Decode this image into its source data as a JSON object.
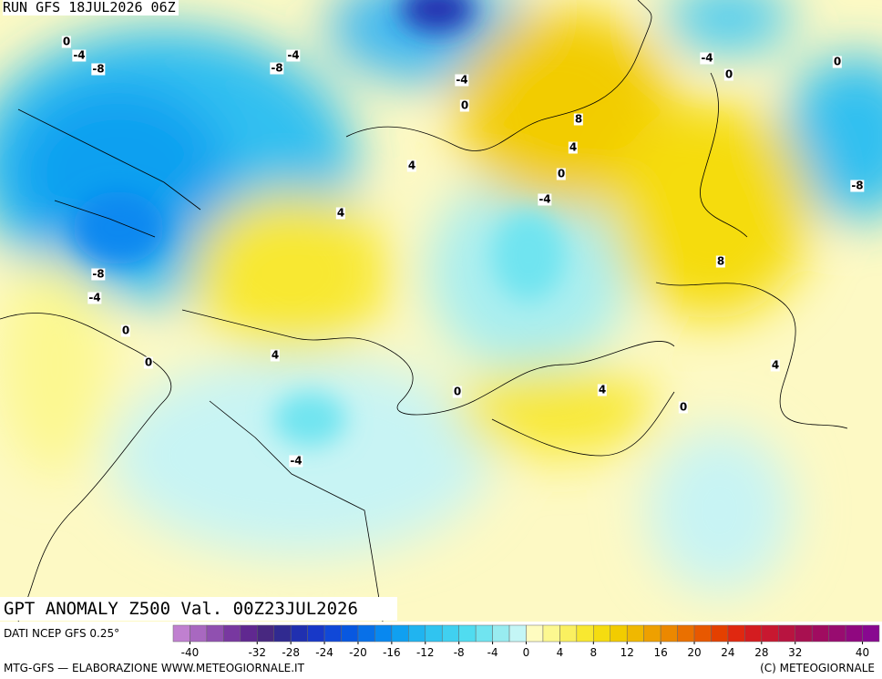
{
  "header": {
    "run": "RUN GFS 18JUL2026 06Z"
  },
  "title": "GPT ANOMALY Z500 Val. 00Z23JUL2026",
  "contour_labels": [
    0,
    -4,
    -8,
    -8,
    -4,
    -4,
    0,
    8,
    4,
    4,
    0,
    -4,
    4,
    -8,
    -4,
    0,
    4,
    0,
    0,
    4,
    0,
    -4,
    8,
    4,
    -4,
    0,
    0,
    -8
  ],
  "colorbar": {
    "source": "DATI NCEP GFS 0.25°",
    "limits": [
      -42,
      42
    ],
    "ticks": [
      -40,
      -32,
      -28,
      -24,
      -20,
      -16,
      -12,
      -8,
      -4,
      0,
      4,
      8,
      12,
      16,
      20,
      24,
      28,
      32,
      40
    ],
    "colors": [
      "#c080d0",
      "#a868c0",
      "#9050b0",
      "#7838a0",
      "#602890",
      "#482880",
      "#302a90",
      "#2030b0",
      "#1838c8",
      "#1048d8",
      "#0858e0",
      "#0870e8",
      "#0888f0",
      "#10a0f0",
      "#20b4f0",
      "#30c4f0",
      "#40d0f0",
      "#50dcf0",
      "#70e4f0",
      "#98ecf0",
      "#c4f6f6",
      "#fefcc0",
      "#fcf890",
      "#faf060",
      "#f8e830",
      "#f5dc10",
      "#f2cc00",
      "#f0b800",
      "#eea000",
      "#ec8800",
      "#ea7000",
      "#e85800",
      "#e44000",
      "#e02810",
      "#d41c20",
      "#c81830",
      "#b81440",
      "#a81050",
      "#a00c60",
      "#980c70",
      "#900880",
      "#880890"
    ]
  },
  "footer": {
    "left": "MTG-GFS — ELABORAZIONE WWW.METEOGIORNALE.IT",
    "right": "(C) METEOGIORNALE"
  }
}
